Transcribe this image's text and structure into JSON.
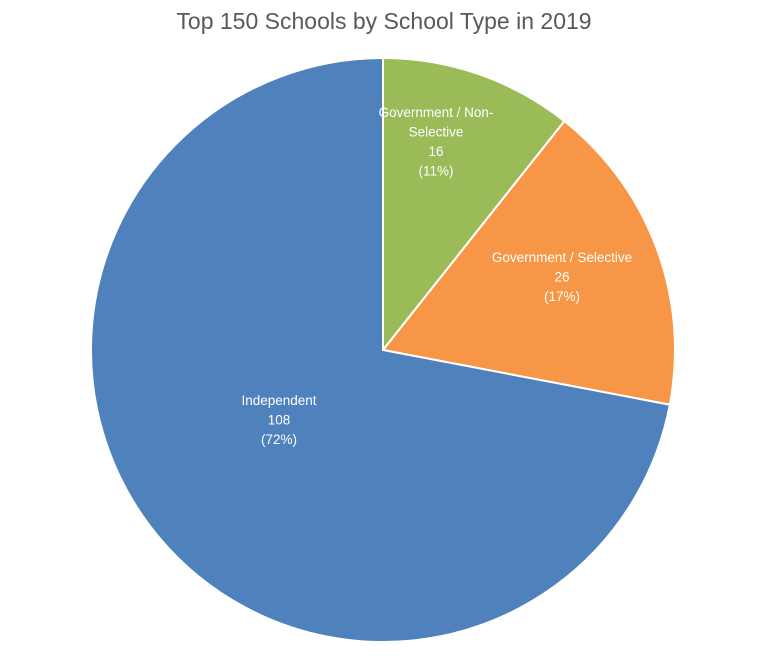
{
  "chart_data": {
    "type": "pie",
    "title": "Top 150 Schools by School Type in 2019",
    "start_angle": "12 o'clock, clockwise",
    "slices": [
      {
        "name": "Government / Non-Selective",
        "value": 16,
        "percent": "(11%)",
        "color": "#9BBB59"
      },
      {
        "name": "Government / Selective",
        "value": 26,
        "percent": "(17%)",
        "color": "#F79646"
      },
      {
        "name": "Independent",
        "value": 108,
        "percent": "(72%)",
        "color": "#4F81BD"
      }
    ],
    "legend": "none"
  }
}
